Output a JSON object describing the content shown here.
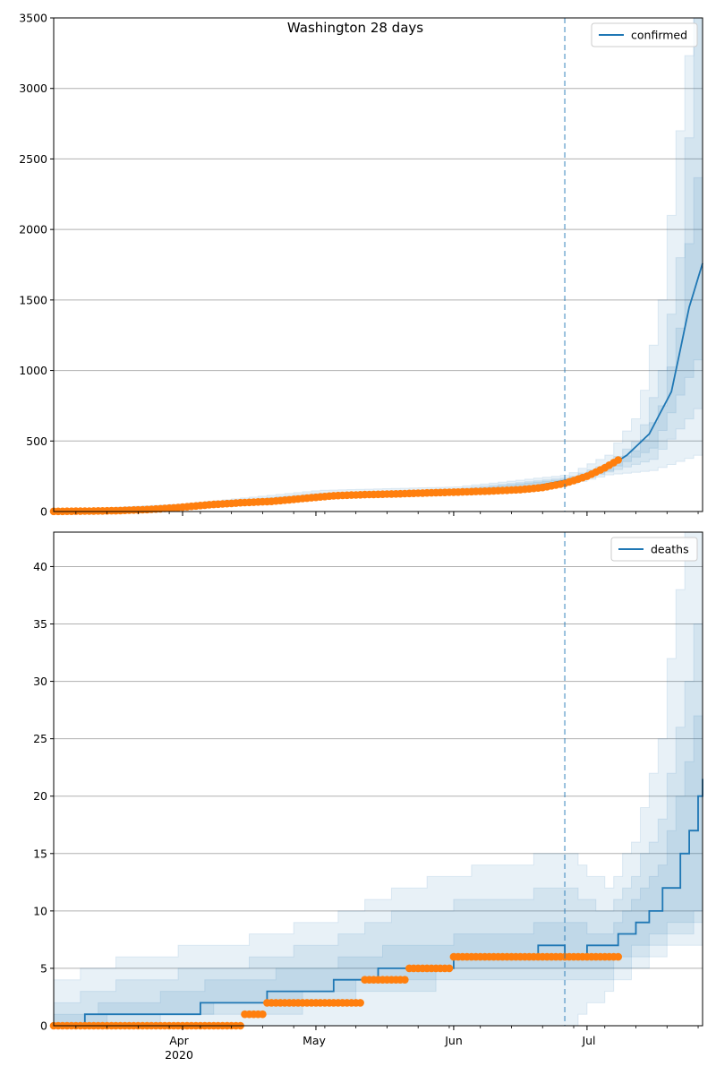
{
  "figure": {
    "title": "Washington 28 days",
    "x_tick_labels": [
      "Apr",
      "May",
      "Jun",
      "Jul"
    ],
    "x_year_label": "2020"
  },
  "chart_data": [
    {
      "type": "line",
      "title": "Washington 28 days",
      "legend": {
        "label": "confirmed",
        "placement": "top-right"
      },
      "grid": "y",
      "xlim": [
        "2020-03-03",
        "2020-07-27"
      ],
      "ylim": [
        0,
        3500
      ],
      "y_ticks": [
        0,
        500,
        1000,
        1500,
        2000,
        2500,
        3000,
        3500
      ],
      "forecast_start": "2020-06-26",
      "forecast_median": [
        [
          "2020-03-03",
          3
        ],
        [
          "2020-03-20",
          8
        ],
        [
          "2020-04-01",
          35
        ],
        [
          "2020-04-15",
          70
        ],
        [
          "2020-05-01",
          115
        ],
        [
          "2020-05-15",
          125
        ],
        [
          "2020-06-01",
          140
        ],
        [
          "2020-06-15",
          155
        ],
        [
          "2020-06-26",
          220
        ],
        [
          "2020-07-05",
          300
        ],
        [
          "2020-07-10",
          400
        ],
        [
          "2020-07-15",
          550
        ],
        [
          "2020-07-20",
          850
        ],
        [
          "2020-07-24",
          1450
        ],
        [
          "2020-07-27",
          1760
        ]
      ],
      "intervals": [
        {
          "lower": [
            [
              "2020-03-03",
              0
            ],
            [
              "2020-04-01",
              25
            ],
            [
              "2020-05-01",
              95
            ],
            [
              "2020-06-01",
              120
            ],
            [
              "2020-06-26",
              190
            ],
            [
              "2020-07-05",
              260
            ],
            [
              "2020-07-15",
              290
            ],
            [
              "2020-07-27",
              420
            ]
          ],
          "upper": [
            [
              "2020-03-03",
              10
            ],
            [
              "2020-04-01",
              55
            ],
            [
              "2020-05-01",
              150
            ],
            [
              "2020-06-01",
              175
            ],
            [
              "2020-06-26",
              260
            ],
            [
              "2020-07-05",
              400
            ],
            [
              "2020-07-12",
              700
            ],
            [
              "2020-07-17",
              1500
            ],
            [
              "2020-07-21",
              2700
            ],
            [
              "2020-07-24",
              3500
            ],
            [
              "2020-07-27",
              3500
            ]
          ]
        },
        {
          "lower": [
            [
              "2020-03-03",
              1
            ],
            [
              "2020-04-01",
              30
            ],
            [
              "2020-05-01",
              105
            ],
            [
              "2020-06-01",
              130
            ],
            [
              "2020-06-26",
              200
            ],
            [
              "2020-07-05",
              280
            ],
            [
              "2020-07-15",
              370
            ],
            [
              "2020-07-27",
              800
            ]
          ],
          "upper": [
            [
              "2020-03-03",
              6
            ],
            [
              "2020-04-01",
              45
            ],
            [
              "2020-05-01",
              130
            ],
            [
              "2020-06-01",
              160
            ],
            [
              "2020-06-26",
              240
            ],
            [
              "2020-07-05",
              340
            ],
            [
              "2020-07-12",
              520
            ],
            [
              "2020-07-17",
              1000
            ],
            [
              "2020-07-21",
              1800
            ],
            [
              "2020-07-25",
              3500
            ],
            [
              "2020-07-27",
              3500
            ]
          ]
        },
        {
          "lower": [
            [
              "2020-03-03",
              2
            ],
            [
              "2020-04-01",
              32
            ],
            [
              "2020-05-01",
              110
            ],
            [
              "2020-06-01",
              135
            ],
            [
              "2020-06-26",
              210
            ],
            [
              "2020-07-05",
              290
            ],
            [
              "2020-07-15",
              450
            ],
            [
              "2020-07-27",
              1200
            ]
          ],
          "upper": [
            [
              "2020-03-03",
              4
            ],
            [
              "2020-04-01",
              40
            ],
            [
              "2020-05-01",
              120
            ],
            [
              "2020-06-01",
              150
            ],
            [
              "2020-06-26",
              230
            ],
            [
              "2020-07-05",
              320
            ],
            [
              "2020-07-12",
              450
            ],
            [
              "2020-07-17",
              750
            ],
            [
              "2020-07-21",
              1300
            ],
            [
              "2020-07-24",
              2200
            ],
            [
              "2020-07-27",
              2700
            ]
          ]
        }
      ],
      "observed": [
        [
          "2020-03-03",
          1
        ],
        [
          "2020-03-10",
          3
        ],
        [
          "2020-03-17",
          6
        ],
        [
          "2020-03-24",
          14
        ],
        [
          "2020-03-31",
          28
        ],
        [
          "2020-04-07",
          48
        ],
        [
          "2020-04-14",
          62
        ],
        [
          "2020-04-21",
          72
        ],
        [
          "2020-04-28",
          92
        ],
        [
          "2020-05-05",
          112
        ],
        [
          "2020-05-12",
          120
        ],
        [
          "2020-05-19",
          125
        ],
        [
          "2020-05-26",
          132
        ],
        [
          "2020-06-02",
          138
        ],
        [
          "2020-06-09",
          145
        ],
        [
          "2020-06-16",
          155
        ],
        [
          "2020-06-21",
          170
        ],
        [
          "2020-06-26",
          200
        ],
        [
          "2020-07-01",
          250
        ],
        [
          "2020-07-05",
          310
        ],
        [
          "2020-07-08",
          365
        ]
      ]
    },
    {
      "type": "line",
      "legend": {
        "label": "deaths",
        "placement": "top-right"
      },
      "grid": "y",
      "xlim": [
        "2020-03-03",
        "2020-07-27"
      ],
      "ylim": [
        0,
        43
      ],
      "y_ticks": [
        0,
        5,
        10,
        15,
        20,
        25,
        30,
        35,
        40
      ],
      "forecast_start": "2020-06-26",
      "forecast_median_steps": [
        [
          "2020-03-03",
          0
        ],
        [
          "2020-03-10",
          1
        ],
        [
          "2020-04-05",
          2
        ],
        [
          "2020-04-20",
          3
        ],
        [
          "2020-05-05",
          4
        ],
        [
          "2020-05-15",
          5
        ],
        [
          "2020-06-01",
          6
        ],
        [
          "2020-06-20",
          7
        ],
        [
          "2020-06-26",
          6
        ],
        [
          "2020-07-01",
          7
        ],
        [
          "2020-07-08",
          8
        ],
        [
          "2020-07-12",
          9
        ],
        [
          "2020-07-15",
          10
        ],
        [
          "2020-07-18",
          12
        ],
        [
          "2020-07-22",
          15
        ],
        [
          "2020-07-24",
          17
        ],
        [
          "2020-07-26",
          20
        ],
        [
          "2020-07-27",
          21.5
        ]
      ],
      "intervals": [
        {
          "lower": [
            [
              "2020-03-03",
              0
            ],
            [
              "2020-06-01",
              0
            ],
            [
              "2020-06-26",
              0
            ],
            [
              "2020-07-05",
              3
            ],
            [
              "2020-07-15",
              6
            ],
            [
              "2020-07-22",
              7
            ],
            [
              "2020-07-27",
              7
            ]
          ],
          "upper": [
            [
              "2020-03-03",
              4
            ],
            [
              "2020-03-20",
              6
            ],
            [
              "2020-04-10",
              7
            ],
            [
              "2020-05-01",
              9
            ],
            [
              "2020-05-20",
              12
            ],
            [
              "2020-06-10",
              14
            ],
            [
              "2020-06-26",
              15
            ],
            [
              "2020-07-05",
              12
            ],
            [
              "2020-07-12",
              17
            ],
            [
              "2020-07-17",
              25
            ],
            [
              "2020-07-20",
              35
            ],
            [
              "2020-07-23",
              43
            ],
            [
              "2020-07-27",
              43
            ]
          ]
        },
        {
          "lower": [
            [
              "2020-03-03",
              0
            ],
            [
              "2020-04-20",
              1
            ],
            [
              "2020-05-15",
              3
            ],
            [
              "2020-06-10",
              4
            ],
            [
              "2020-06-26",
              4
            ],
            [
              "2020-07-05",
              4
            ],
            [
              "2020-07-15",
              7
            ],
            [
              "2020-07-22",
              8
            ],
            [
              "2020-07-27",
              9
            ]
          ],
          "upper": [
            [
              "2020-03-03",
              2
            ],
            [
              "2020-03-20",
              4
            ],
            [
              "2020-04-10",
              5
            ],
            [
              "2020-05-01",
              7
            ],
            [
              "2020-05-20",
              10
            ],
            [
              "2020-06-10",
              11
            ],
            [
              "2020-06-26",
              12
            ],
            [
              "2020-07-05",
              10
            ],
            [
              "2020-07-12",
              14
            ],
            [
              "2020-07-17",
              18
            ],
            [
              "2020-07-20",
              24
            ],
            [
              "2020-07-24",
              32
            ],
            [
              "2020-07-27",
              40
            ]
          ]
        },
        {
          "lower": [
            [
              "2020-03-03",
              0
            ],
            [
              "2020-04-20",
              2
            ],
            [
              "2020-05-15",
              4
            ],
            [
              "2020-06-10",
              5
            ],
            [
              "2020-06-26",
              5
            ],
            [
              "2020-07-05",
              5
            ],
            [
              "2020-07-15",
              8
            ],
            [
              "2020-07-22",
              9
            ],
            [
              "2020-07-27",
              11
            ]
          ],
          "upper": [
            [
              "2020-03-03",
              1
            ],
            [
              "2020-03-20",
              2
            ],
            [
              "2020-04-10",
              4
            ],
            [
              "2020-05-01",
              5
            ],
            [
              "2020-05-20",
              7
            ],
            [
              "2020-06-10",
              8
            ],
            [
              "2020-06-26",
              9
            ],
            [
              "2020-07-05",
              8
            ],
            [
              "2020-07-12",
              11
            ],
            [
              "2020-07-17",
              14
            ],
            [
              "2020-07-20",
              18
            ],
            [
              "2020-07-24",
              25
            ],
            [
              "2020-07-27",
              30
            ]
          ]
        }
      ],
      "observed_steps": [
        [
          "2020-03-03",
          0
        ],
        [
          "2020-04-15",
          1
        ],
        [
          "2020-04-20",
          2
        ],
        [
          "2020-05-12",
          4
        ],
        [
          "2020-05-22",
          5
        ],
        [
          "2020-06-01",
          6
        ],
        [
          "2020-07-08",
          6
        ]
      ]
    }
  ]
}
